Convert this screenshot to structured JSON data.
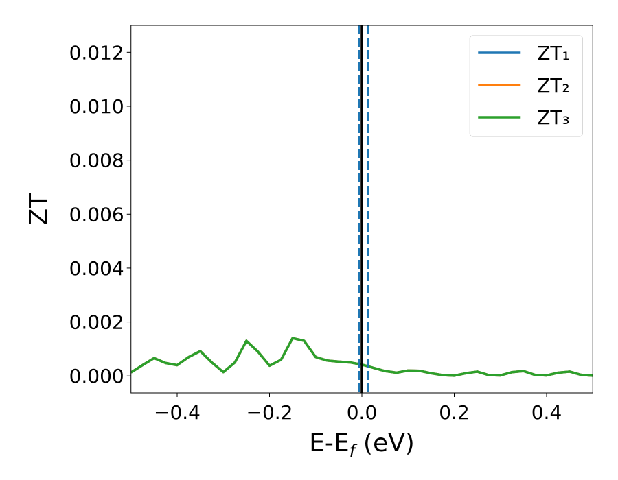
{
  "chart_data": {
    "type": "line",
    "xlabel": [
      "E-E",
      "f",
      " (eV)"
    ],
    "ylabel": "ZT",
    "x": [
      -0.5,
      -0.475,
      -0.45,
      -0.425,
      -0.4,
      -0.375,
      -0.35,
      -0.325,
      -0.3,
      -0.275,
      -0.25,
      -0.225,
      -0.2,
      -0.175,
      -0.15,
      -0.125,
      -0.1,
      -0.075,
      -0.05,
      -0.025,
      0,
      0.025,
      0.05,
      0.075,
      0.1,
      0.125,
      0.15,
      0.175,
      0.2,
      0.225,
      0.25,
      0.275,
      0.3,
      0.325,
      0.35,
      0.375,
      0.4,
      0.425,
      0.45,
      0.475,
      0.5
    ],
    "series": [
      {
        "name": "ZT₁",
        "color": "#1f77b4",
        "values": [
          0.00013,
          0.0004,
          0.00066,
          0.00048,
          0.0004,
          0.0007,
          0.00092,
          0.0005,
          0.00014,
          0.0005,
          0.0013,
          0.0009,
          0.00038,
          0.0006,
          0.0014,
          0.0013,
          0.0007,
          0.00057,
          0.00053,
          0.0005,
          0.00042,
          0.0003,
          0.00018,
          0.00012,
          0.0002,
          0.00019,
          0.0001,
          3e-05,
          1e-05,
          0.0001,
          0.00016,
          3e-05,
          2e-05,
          0.00014,
          0.00018,
          4e-05,
          2e-05,
          0.00012,
          0.00016,
          4e-05,
          1e-05
        ]
      },
      {
        "name": "ZT₂",
        "color": "#ff7f0e",
        "values": [
          0.00013,
          0.0004,
          0.00066,
          0.00048,
          0.0004,
          0.0007,
          0.00092,
          0.0005,
          0.00014,
          0.0005,
          0.0013,
          0.0009,
          0.00038,
          0.0006,
          0.0014,
          0.0013,
          0.0007,
          0.00057,
          0.00053,
          0.0005,
          0.00042,
          0.0003,
          0.00018,
          0.00012,
          0.0002,
          0.00019,
          0.0001,
          3e-05,
          1e-05,
          0.0001,
          0.00016,
          3e-05,
          2e-05,
          0.00014,
          0.00018,
          4e-05,
          2e-05,
          0.00012,
          0.00016,
          4e-05,
          1e-05
        ]
      },
      {
        "name": "ZT₃",
        "color": "#2ca02c",
        "values": [
          0.00013,
          0.0004,
          0.00066,
          0.00048,
          0.0004,
          0.0007,
          0.00092,
          0.0005,
          0.00014,
          0.0005,
          0.0013,
          0.0009,
          0.00038,
          0.0006,
          0.0014,
          0.0013,
          0.0007,
          0.00057,
          0.00053,
          0.0005,
          0.00042,
          0.0003,
          0.00018,
          0.00012,
          0.0002,
          0.00019,
          0.0001,
          3e-05,
          1e-05,
          0.0001,
          0.00016,
          3e-05,
          2e-05,
          0.00014,
          0.00018,
          4e-05,
          2e-05,
          0.00012,
          0.00016,
          4e-05,
          1e-05
        ]
      }
    ],
    "vlines": [
      {
        "x": 0,
        "color": "#000000",
        "style": "solid"
      },
      {
        "x": -0.006,
        "color": "#1f77b4",
        "style": "dashed"
      },
      {
        "x": 0.013,
        "color": "#1f77b4",
        "style": "dashed"
      }
    ],
    "xlim": [
      -0.5,
      0.5
    ],
    "ylim": [
      -0.00063,
      0.013
    ],
    "xticks": [
      {
        "value": -0.4,
        "label": "−0.4"
      },
      {
        "value": -0.2,
        "label": "−0.2"
      },
      {
        "value": 0,
        "label": "0.0"
      },
      {
        "value": 0.2,
        "label": "0.2"
      },
      {
        "value": 0.4,
        "label": "0.4"
      }
    ],
    "yticks": [
      {
        "value": 0,
        "label": "0.000"
      },
      {
        "value": 0.002,
        "label": "0.002"
      },
      {
        "value": 0.004,
        "label": "0.004"
      },
      {
        "value": 0.006,
        "label": "0.006"
      },
      {
        "value": 0.008,
        "label": "0.008"
      },
      {
        "value": 0.01,
        "label": "0.010"
      },
      {
        "value": 0.012,
        "label": "0.012"
      }
    ],
    "legend": "upper right"
  }
}
